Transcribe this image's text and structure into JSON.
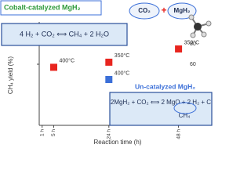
{
  "chart_data": {
    "type": "scatter",
    "x_label": "Reaction time (h)",
    "y_label": "CH₄ yield (%)",
    "xlim": [
      0,
      50
    ],
    "xticks": [
      {
        "value": 1,
        "label": "1 h"
      },
      {
        "value": 5,
        "label": "5 h"
      },
      {
        "value": 24,
        "label": "24 h"
      },
      {
        "value": 48,
        "label": "48 h"
      }
    ],
    "ylim": [
      0,
      100
    ],
    "yticks": [
      60,
      80
    ],
    "series": [
      {
        "name": "Cobalt-catalyzed MgH₂",
        "color": "#e8251f",
        "x": [
          5,
          24,
          48
        ],
        "values": [
          57,
          62,
          75
        ],
        "point_labels": [
          "400°C",
          "350°C",
          "350°C"
        ],
        "equation": "4 H₂ + CO₂ ⟺ CH₄ + 2 H₂O"
      },
      {
        "name": "Un-catalyzed MgH₂",
        "color": "#3b6fd8",
        "x": [
          24
        ],
        "values": [
          45
        ],
        "point_labels": [
          "400°C"
        ],
        "equation": "2MgH₂ + CO₂ ⟺ 2 MgO + 2 H₂ + C",
        "equation_note": "CH₄"
      }
    ],
    "reactants": [
      "CO₂",
      "+",
      "MgH₂"
    ]
  }
}
